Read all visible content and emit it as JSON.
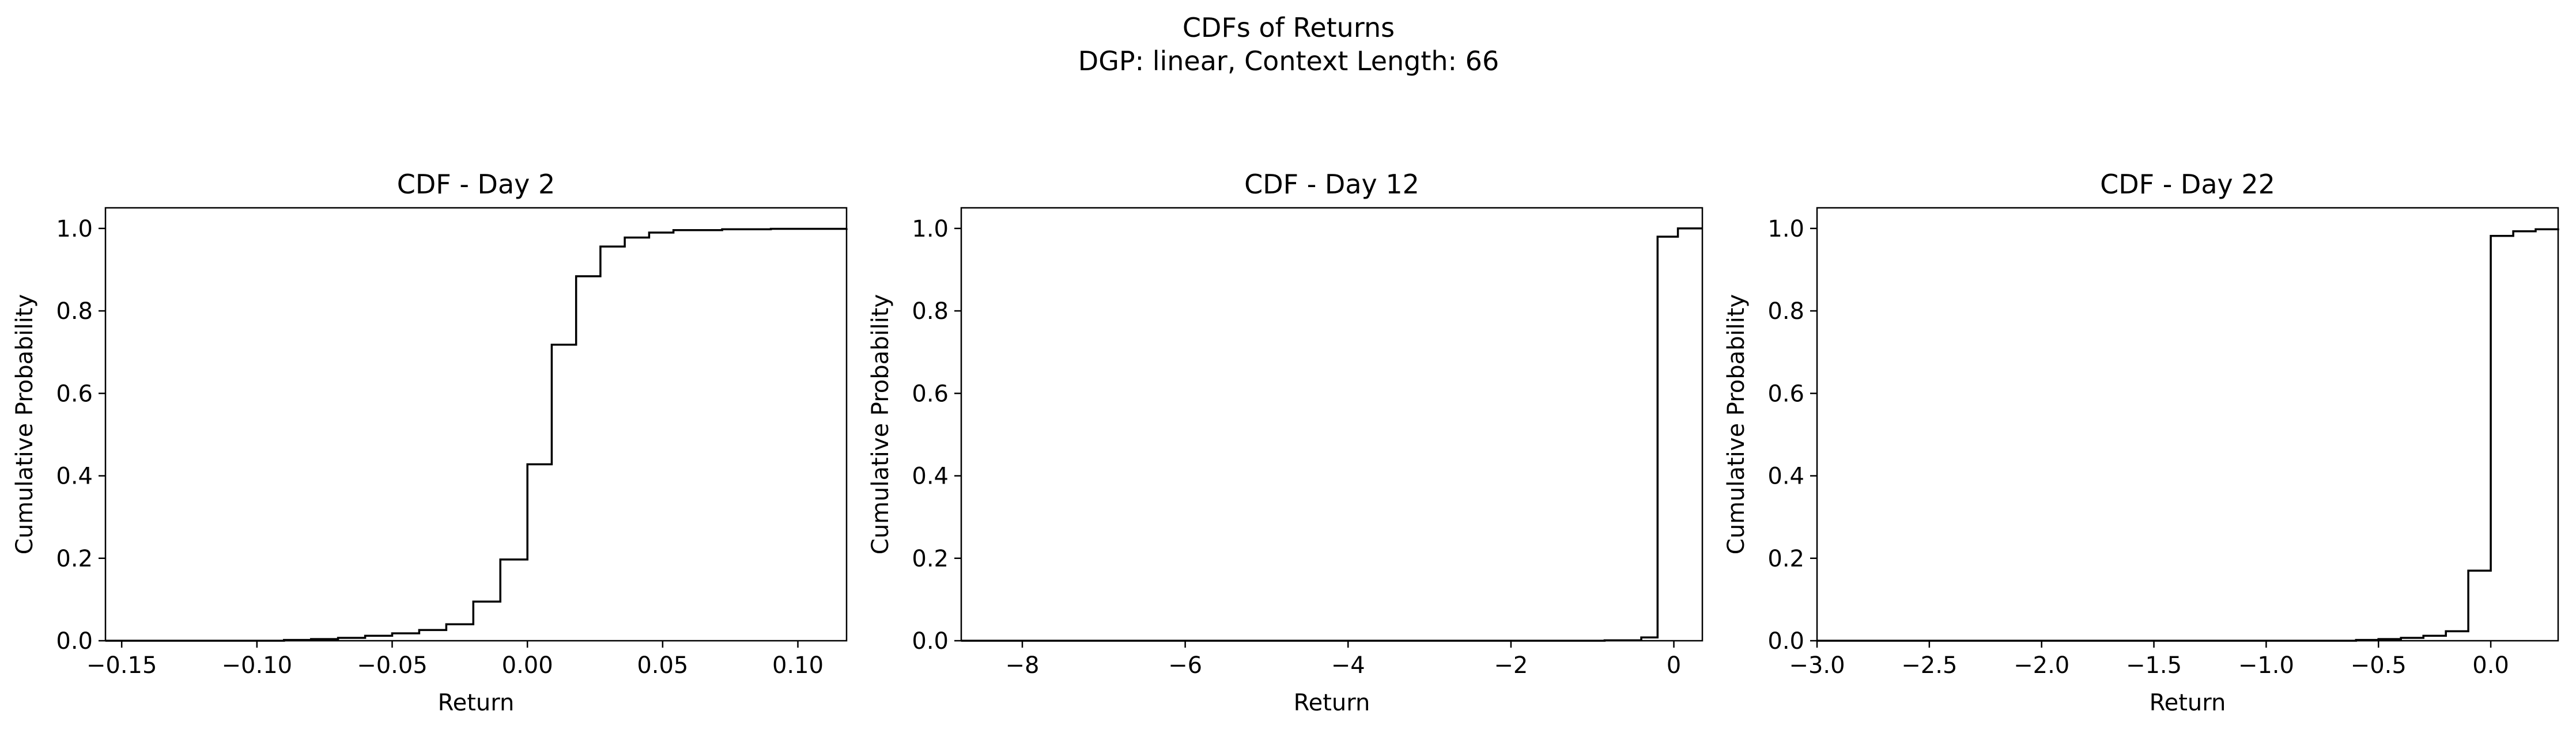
{
  "figure": {
    "title_line1": "CDFs of Returns",
    "title_line2": "DGP: linear, Context Length: 66"
  },
  "chart_data": [
    {
      "type": "line",
      "style": "step",
      "title": "CDF - Day 2",
      "xlabel": "Return",
      "ylabel": "Cumulative Probability",
      "xlim": [
        -0.156,
        0.118
      ],
      "ylim": [
        0,
        1.05
      ],
      "xticks": [
        -0.15,
        -0.1,
        -0.05,
        0.0,
        0.05,
        0.1
      ],
      "xtick_labels": [
        "−0.15",
        "−0.10",
        "−0.05",
        "0.00",
        "0.05",
        "0.10"
      ],
      "yticks": [
        0.0,
        0.2,
        0.4,
        0.6,
        0.8,
        1.0
      ],
      "ytick_labels": [
        "0.0",
        "0.2",
        "0.4",
        "0.6",
        "0.8",
        "1.0"
      ],
      "grid": false,
      "x": [
        -0.156,
        -0.09,
        -0.08,
        -0.07,
        -0.06,
        -0.05,
        -0.04,
        -0.03,
        -0.02,
        -0.01,
        0.0,
        0.009,
        0.018,
        0.027,
        0.036,
        0.045,
        0.054,
        0.072,
        0.09,
        0.118
      ],
      "y": [
        0.0,
        0.002,
        0.004,
        0.007,
        0.012,
        0.018,
        0.026,
        0.04,
        0.095,
        0.197,
        0.428,
        0.718,
        0.884,
        0.956,
        0.978,
        0.99,
        0.996,
        0.998,
        0.999,
        1.0
      ]
    },
    {
      "type": "line",
      "style": "step",
      "title": "CDF - Day 12",
      "xlabel": "Return",
      "ylabel": "Cumulative Probability",
      "xlim": [
        -8.75,
        0.35
      ],
      "ylim": [
        0,
        1.05
      ],
      "xticks": [
        -8,
        -6,
        -4,
        -2,
        0
      ],
      "xtick_labels": [
        "−8",
        "−6",
        "−4",
        "−2",
        "0"
      ],
      "yticks": [
        0.0,
        0.2,
        0.4,
        0.6,
        0.8,
        1.0
      ],
      "ytick_labels": [
        "0.0",
        "0.2",
        "0.4",
        "0.6",
        "0.8",
        "1.0"
      ],
      "grid": false,
      "x": [
        -8.75,
        -0.85,
        -0.4,
        -0.2,
        0.05,
        0.35
      ],
      "y": [
        0.0,
        0.001,
        0.008,
        0.98,
        1.0,
        1.0
      ]
    },
    {
      "type": "line",
      "style": "step",
      "title": "CDF - Day 22",
      "xlabel": "Return",
      "ylabel": "Cumulative Probability",
      "xlim": [
        -3.0,
        0.3
      ],
      "ylim": [
        0,
        1.05
      ],
      "xticks": [
        -3.0,
        -2.5,
        -2.0,
        -1.5,
        -1.0,
        -0.5,
        0.0
      ],
      "xtick_labels": [
        "−3.0",
        "−2.5",
        "−2.0",
        "−1.5",
        "−1.0",
        "−0.5",
        "0.0"
      ],
      "yticks": [
        0.0,
        0.2,
        0.4,
        0.6,
        0.8,
        1.0
      ],
      "ytick_labels": [
        "0.0",
        "0.2",
        "0.4",
        "0.6",
        "0.8",
        "1.0"
      ],
      "grid": false,
      "x": [
        -3.0,
        -0.6,
        -0.5,
        -0.4,
        -0.3,
        -0.2,
        -0.1,
        0.0,
        0.1,
        0.2,
        0.3
      ],
      "y": [
        0.0,
        0.002,
        0.004,
        0.007,
        0.012,
        0.023,
        0.17,
        0.982,
        0.993,
        0.998,
        1.0
      ]
    }
  ]
}
